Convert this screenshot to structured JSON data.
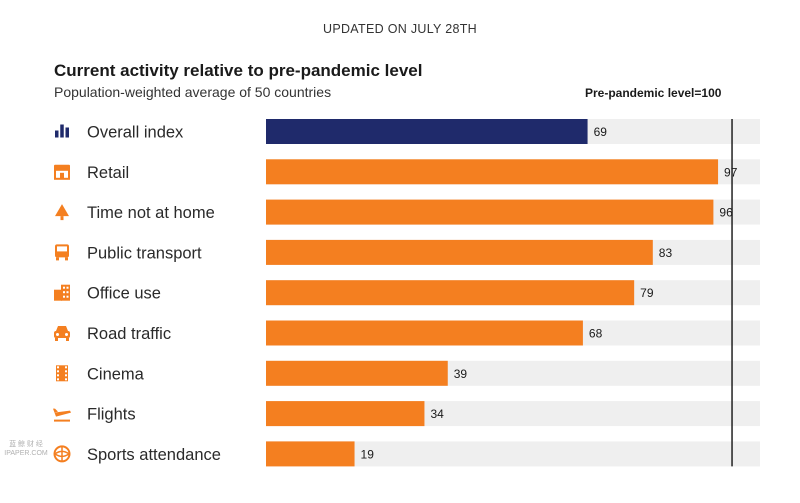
{
  "header": {
    "updated": "UPDATED ON JULY 28TH",
    "title": "Current activity relative to pre-pandemic level",
    "subtitle": "Population-weighted average of 50 countries",
    "reference_label": "Pre-pandemic level=100"
  },
  "watermark": {
    "line1": "蓝 鲸 财 经",
    "line2": "IPAPER.COM"
  },
  "colors": {
    "overall": "#1f2a6b",
    "category": "#f47f20",
    "track": "#efefef",
    "reference_line": "#222222"
  },
  "chart_data": {
    "type": "bar",
    "orientation": "horizontal",
    "categories": [
      "Overall index",
      "Retail",
      "Time not at home",
      "Public transport",
      "Office use",
      "Road traffic",
      "Cinema",
      "Flights",
      "Sports attendance"
    ],
    "icons": [
      "bar-chart-icon",
      "storefront-icon",
      "tree-icon",
      "bus-icon",
      "office-building-icon",
      "car-icon",
      "film-icon",
      "airplane-icon",
      "ball-icon"
    ],
    "values": [
      69,
      97,
      96,
      83,
      79,
      68,
      39,
      34,
      19
    ],
    "value_labels": [
      "69",
      "97",
      "96",
      "83",
      "79",
      "68",
      "39",
      "34",
      "19"
    ],
    "title": "Current activity relative to pre-pandemic level",
    "subtitle": "Population-weighted average of 50 countries",
    "xlim": [
      0,
      106
    ],
    "reference_value": 100,
    "grid": false,
    "legend": "none"
  }
}
